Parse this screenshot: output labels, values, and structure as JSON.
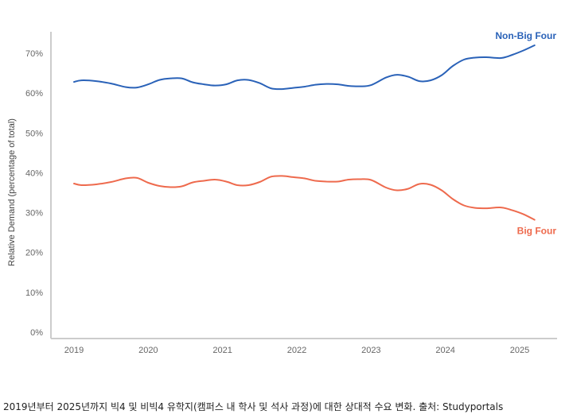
{
  "caption": "2019년부터 2025년까지 빅4 및 비빅4 유학지(캠퍼스 내 학사 및 석사 과정)에 대한 상대적 수요 변화. 출처: Studyportals",
  "chart_data": {
    "type": "line",
    "title": "",
    "xlabel": "",
    "ylabel": "Relative Demand (percentage of total)",
    "ylim": [
      0,
      75
    ],
    "xlim": [
      2018.7,
      2025.5
    ],
    "yticks": [
      0,
      10,
      20,
      30,
      40,
      50,
      60,
      70
    ],
    "ytick_labels": [
      "0%",
      "10%",
      "20%",
      "30%",
      "40%",
      "50%",
      "60%",
      "70%"
    ],
    "xticks": [
      2019,
      2020,
      2021,
      2022,
      2023,
      2024,
      2025
    ],
    "xtick_labels": [
      "2019",
      "2020",
      "2021",
      "2022",
      "2023",
      "2024",
      "2025"
    ],
    "grid": false,
    "legend": "none (series labelled directly at line ends)",
    "series": [
      {
        "name": "Non-Big Four",
        "color": "#2a62b8",
        "x": [
          2019.0,
          2019.1,
          2019.3,
          2019.5,
          2019.7,
          2019.85,
          2020.0,
          2020.15,
          2020.3,
          2020.45,
          2020.6,
          2020.75,
          2020.9,
          2021.05,
          2021.2,
          2021.35,
          2021.5,
          2021.65,
          2021.8,
          2021.95,
          2022.1,
          2022.25,
          2022.4,
          2022.55,
          2022.7,
          2022.85,
          2023.0,
          2023.2,
          2023.35,
          2023.5,
          2023.65,
          2023.8,
          2023.95,
          2024.1,
          2024.25,
          2024.4,
          2024.55,
          2024.75,
          2024.9,
          2025.05,
          2025.2
        ],
        "values": [
          62.8,
          63.2,
          63.0,
          62.4,
          61.5,
          61.4,
          62.2,
          63.3,
          63.7,
          63.7,
          62.7,
          62.2,
          61.9,
          62.2,
          63.2,
          63.3,
          62.5,
          61.2,
          61.0,
          61.3,
          61.6,
          62.1,
          62.3,
          62.2,
          61.8,
          61.7,
          62.0,
          63.9,
          64.6,
          64.1,
          63.0,
          63.2,
          64.5,
          66.8,
          68.4,
          68.9,
          69.0,
          68.8,
          69.6,
          70.7,
          72.0
        ]
      },
      {
        "name": "Big Four",
        "color": "#ee6a4d",
        "x": [
          2019.0,
          2019.1,
          2019.3,
          2019.5,
          2019.7,
          2019.85,
          2020.0,
          2020.15,
          2020.3,
          2020.45,
          2020.6,
          2020.75,
          2020.9,
          2021.05,
          2021.2,
          2021.35,
          2021.5,
          2021.65,
          2021.8,
          2021.95,
          2022.1,
          2022.25,
          2022.4,
          2022.55,
          2022.7,
          2022.85,
          2023.0,
          2023.2,
          2023.35,
          2023.5,
          2023.65,
          2023.8,
          2023.95,
          2024.1,
          2024.25,
          2024.4,
          2024.55,
          2024.75,
          2024.9,
          2025.05,
          2025.2
        ],
        "values": [
          37.3,
          36.9,
          37.1,
          37.7,
          38.6,
          38.7,
          37.5,
          36.7,
          36.4,
          36.6,
          37.6,
          38.0,
          38.3,
          37.8,
          36.9,
          36.9,
          37.7,
          39.0,
          39.2,
          38.9,
          38.6,
          38.0,
          37.8,
          37.8,
          38.3,
          38.4,
          38.2,
          36.3,
          35.6,
          36.0,
          37.2,
          37.0,
          35.6,
          33.4,
          31.8,
          31.2,
          31.1,
          31.3,
          30.6,
          29.6,
          28.2
        ]
      }
    ]
  }
}
